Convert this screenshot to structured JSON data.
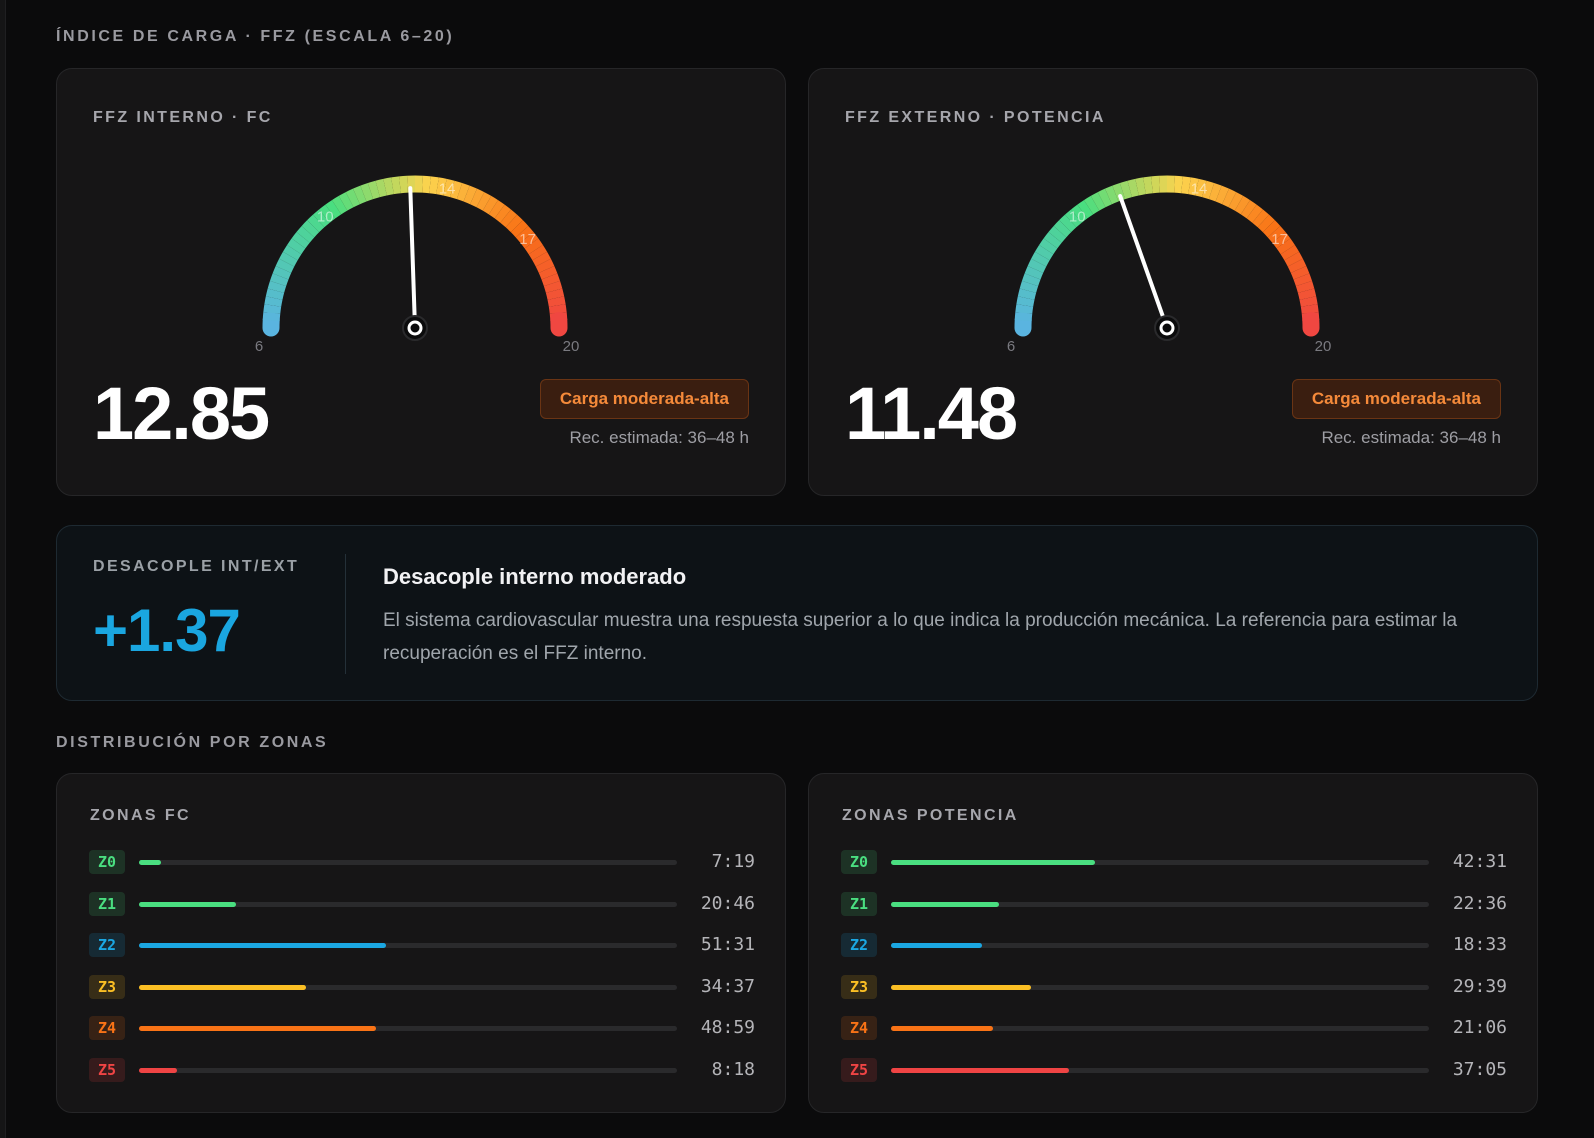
{
  "load_section": {
    "title": "ÍNDICE DE CARGA · FFZ (ESCALA 6–20)"
  },
  "gauges": [
    {
      "title": "FFZ INTERNO · FC",
      "value": 12.85,
      "value_text": "12.85",
      "scale_min": 6,
      "scale_max": 20,
      "tick_labels": [
        "6",
        "10",
        "14",
        "17",
        "20"
      ],
      "badge": "Carga moderada-alta",
      "recovery": "Rec. estimada: 36–48 h"
    },
    {
      "title": "FFZ EXTERNO · POTENCIA",
      "value": 11.48,
      "value_text": "11.48",
      "scale_min": 6,
      "scale_max": 20,
      "tick_labels": [
        "6",
        "10",
        "14",
        "17",
        "20"
      ],
      "badge": "Carga moderada-alta",
      "recovery": "Rec. estimada: 36–48 h"
    }
  ],
  "decouple": {
    "label": "DESACOPLE INT/EXT",
    "value": "+1.37",
    "title": "Desacople interno moderado",
    "text": "El sistema cardiovascular muestra una respuesta superior a lo que indica la producción mecánica. La referencia para estimar la recuperación es el FFZ interno."
  },
  "zones_section": {
    "title": "DISTRIBUCIÓN POR ZONAS"
  },
  "zone_panels": [
    {
      "title": "ZONAS FC",
      "zones": [
        {
          "tag": "Z0",
          "time": "7:19",
          "fraction": 0.04,
          "color": "#4ade80"
        },
        {
          "tag": "Z1",
          "time": "20:46",
          "fraction": 0.18,
          "color": "#4ade80"
        },
        {
          "tag": "Z2",
          "time": "51:31",
          "fraction": 0.46,
          "color": "#1ba7e2"
        },
        {
          "tag": "Z3",
          "time": "34:37",
          "fraction": 0.31,
          "color": "#fbbf24"
        },
        {
          "tag": "Z4",
          "time": "48:59",
          "fraction": 0.44,
          "color": "#f97316"
        },
        {
          "tag": "Z5",
          "time": "8:18",
          "fraction": 0.07,
          "color": "#ef4444"
        }
      ]
    },
    {
      "title": "ZONAS POTENCIA",
      "zones": [
        {
          "tag": "Z0",
          "time": "42:31",
          "fraction": 0.38,
          "color": "#4ade80"
        },
        {
          "tag": "Z1",
          "time": "22:36",
          "fraction": 0.2,
          "color": "#4ade80"
        },
        {
          "tag": "Z2",
          "time": "18:33",
          "fraction": 0.17,
          "color": "#1ba7e2"
        },
        {
          "tag": "Z3",
          "time": "29:39",
          "fraction": 0.26,
          "color": "#fbbf24"
        },
        {
          "tag": "Z4",
          "time": "21:06",
          "fraction": 0.19,
          "color": "#f97316"
        },
        {
          "tag": "Z5",
          "time": "37:05",
          "fraction": 0.33,
          "color": "#ef4444"
        }
      ]
    }
  ]
}
